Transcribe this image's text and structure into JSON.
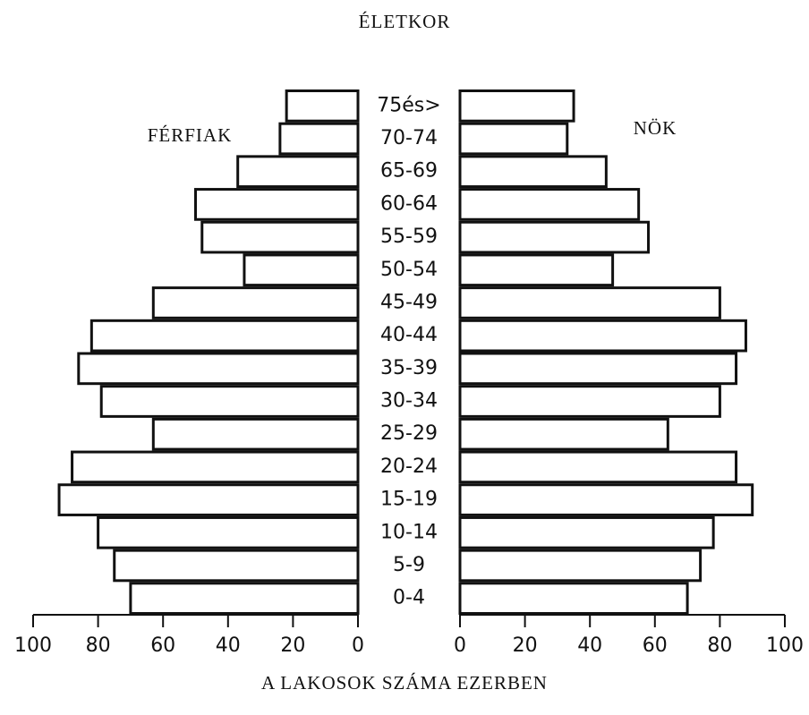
{
  "chart_data": {
    "type": "population_pyramid",
    "title": "ÉLETKOR",
    "xlabel": "A LAKOSOK SZÁMA EZERBEN",
    "categories": [
      "75és>",
      "70-74",
      "65-69",
      "60-64",
      "55-59",
      "50-54",
      "45-49",
      "40-44",
      "35-39",
      "30-34",
      "25-29",
      "20-24",
      "15-19",
      "10-14",
      "5-9",
      "0-4"
    ],
    "series": [
      {
        "name": "FÉRFIAK",
        "color": "#ffffff",
        "side": "left",
        "values": [
          22,
          24,
          37,
          50,
          48,
          35,
          63,
          82,
          86,
          79,
          63,
          88,
          92,
          80,
          75,
          70
        ]
      },
      {
        "name": "NÖK",
        "color": "#ffffff",
        "side": "right",
        "values": [
          35,
          33,
          45,
          55,
          58,
          47,
          80,
          88,
          85,
          80,
          64,
          85,
          90,
          78,
          74,
          70
        ]
      }
    ],
    "xlim": [
      0,
      100
    ],
    "xticks": [
      0,
      20,
      40,
      60,
      80,
      100
    ]
  }
}
